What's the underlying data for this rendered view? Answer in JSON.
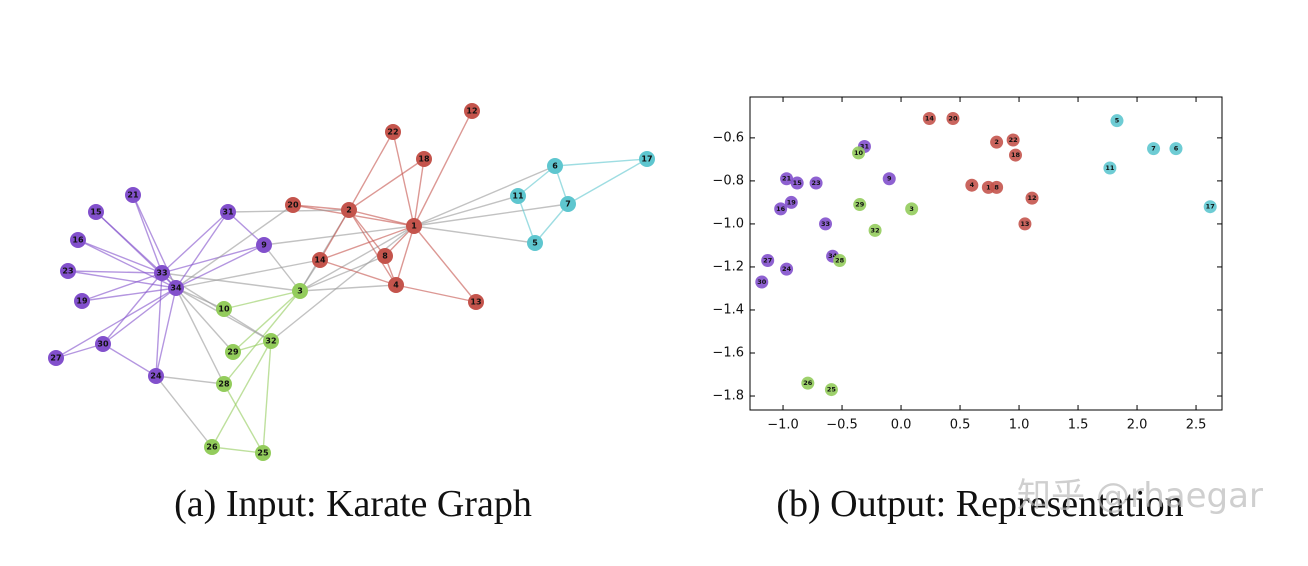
{
  "chart_data": [
    {
      "type": "network",
      "caption": "(a) Input: Karate Graph",
      "groups": [
        {
          "color": "#c4544c"
        },
        {
          "color": "#8250cc"
        },
        {
          "color": "#93cc5c"
        },
        {
          "color": "#5ec6cf"
        }
      ],
      "nodes": [
        {
          "label": "1",
          "group": 0
        },
        {
          "label": "2",
          "group": 0
        },
        {
          "label": "3",
          "group": 2
        },
        {
          "label": "4",
          "group": 0
        },
        {
          "label": "5",
          "group": 3
        },
        {
          "label": "6",
          "group": 3
        },
        {
          "label": "7",
          "group": 3
        },
        {
          "label": "8",
          "group": 0
        },
        {
          "label": "9",
          "group": 1
        },
        {
          "label": "10",
          "group": 2
        },
        {
          "label": "11",
          "group": 3
        },
        {
          "label": "12",
          "group": 0
        },
        {
          "label": "13",
          "group": 0
        },
        {
          "label": "14",
          "group": 0
        },
        {
          "label": "15",
          "group": 1
        },
        {
          "label": "16",
          "group": 1
        },
        {
          "label": "17",
          "group": 3
        },
        {
          "label": "18",
          "group": 0
        },
        {
          "label": "19",
          "group": 1
        },
        {
          "label": "20",
          "group": 0
        },
        {
          "label": "21",
          "group": 1
        },
        {
          "label": "22",
          "group": 0
        },
        {
          "label": "23",
          "group": 1
        },
        {
          "label": "24",
          "group": 1
        },
        {
          "label": "25",
          "group": 2
        },
        {
          "label": "26",
          "group": 2
        },
        {
          "label": "27",
          "group": 1
        },
        {
          "label": "28",
          "group": 2
        },
        {
          "label": "29",
          "group": 2
        },
        {
          "label": "30",
          "group": 1
        },
        {
          "label": "31",
          "group": 1
        },
        {
          "label": "32",
          "group": 2
        },
        {
          "label": "33",
          "group": 1
        },
        {
          "label": "34",
          "group": 1
        }
      ],
      "edges": [
        [
          1,
          2
        ],
        [
          1,
          3
        ],
        [
          1,
          4
        ],
        [
          1,
          5
        ],
        [
          1,
          6
        ],
        [
          1,
          7
        ],
        [
          1,
          8
        ],
        [
          1,
          9
        ],
        [
          1,
          11
        ],
        [
          1,
          12
        ],
        [
          1,
          13
        ],
        [
          1,
          14
        ],
        [
          1,
          18
        ],
        [
          1,
          20
        ],
        [
          1,
          22
        ],
        [
          1,
          32
        ],
        [
          2,
          3
        ],
        [
          2,
          4
        ],
        [
          2,
          8
        ],
        [
          2,
          14
        ],
        [
          2,
          18
        ],
        [
          2,
          20
        ],
        [
          2,
          22
        ],
        [
          2,
          31
        ],
        [
          3,
          4
        ],
        [
          3,
          8
        ],
        [
          3,
          9
        ],
        [
          3,
          10
        ],
        [
          3,
          14
        ],
        [
          3,
          28
        ],
        [
          3,
          29
        ],
        [
          3,
          33
        ],
        [
          4,
          8
        ],
        [
          4,
          13
        ],
        [
          4,
          14
        ],
        [
          5,
          7
        ],
        [
          5,
          11
        ],
        [
          6,
          7
        ],
        [
          6,
          11
        ],
        [
          6,
          17
        ],
        [
          7,
          17
        ],
        [
          9,
          31
        ],
        [
          9,
          33
        ],
        [
          9,
          34
        ],
        [
          10,
          34
        ],
        [
          14,
          34
        ],
        [
          15,
          33
        ],
        [
          15,
          34
        ],
        [
          16,
          33
        ],
        [
          16,
          34
        ],
        [
          19,
          33
        ],
        [
          19,
          34
        ],
        [
          20,
          34
        ],
        [
          21,
          33
        ],
        [
          21,
          34
        ],
        [
          23,
          33
        ],
        [
          23,
          34
        ],
        [
          24,
          26
        ],
        [
          24,
          28
        ],
        [
          24,
          30
        ],
        [
          24,
          33
        ],
        [
          24,
          34
        ],
        [
          25,
          26
        ],
        [
          25,
          28
        ],
        [
          25,
          32
        ],
        [
          26,
          32
        ],
        [
          27,
          30
        ],
        [
          27,
          34
        ],
        [
          28,
          34
        ],
        [
          29,
          32
        ],
        [
          29,
          34
        ],
        [
          30,
          33
        ],
        [
          30,
          34
        ],
        [
          31,
          33
        ],
        [
          31,
          34
        ],
        [
          32,
          33
        ],
        [
          32,
          34
        ],
        [
          33,
          34
        ]
      ]
    },
    {
      "type": "scatter",
      "caption": "(b) Output: Representation",
      "xlim": [
        -1.28,
        2.72
      ],
      "ylim": [
        -1.865,
        -0.41
      ],
      "xticks": [
        {
          "value": -1,
          "label": "−1.0"
        },
        {
          "value": -0.5,
          "label": "−0.5"
        },
        {
          "value": 0,
          "label": "0.0"
        },
        {
          "value": 0.5,
          "label": "0.5"
        },
        {
          "value": 1,
          "label": "1.0"
        },
        {
          "value": 1.5,
          "label": "1.5"
        },
        {
          "value": 2,
          "label": "2.0"
        },
        {
          "value": 2.5,
          "label": "2.5"
        }
      ],
      "yticks": [
        {
          "value": -0.6,
          "label": "−0.6"
        },
        {
          "value": -0.8,
          "label": "−0.8"
        },
        {
          "value": -1,
          "label": "−1.0"
        },
        {
          "value": -1.2,
          "label": "−1.2"
        },
        {
          "value": -1.4,
          "label": "−1.4"
        },
        {
          "value": -1.6,
          "label": "−1.6"
        },
        {
          "value": -1.8,
          "label": "−1.8"
        }
      ],
      "series": [
        {
          "color": "#c4544c",
          "labels": [
            "14",
            "20",
            "2",
            "22",
            "18",
            "4",
            "1",
            "8",
            "12",
            "13"
          ],
          "x": [
            0.24,
            0.44,
            0.81,
            0.95,
            0.97,
            0.6,
            0.74,
            0.81,
            1.11,
            1.05
          ],
          "values": [
            -0.51,
            -0.51,
            -0.62,
            -0.61,
            -0.68,
            -0.82,
            -0.83,
            -0.83,
            -0.88,
            -1.0
          ]
        },
        {
          "color": "#8250cc",
          "labels": [
            "31",
            "9",
            "21",
            "15",
            "23",
            "19",
            "16",
            "33",
            "34",
            "27",
            "24",
            "30"
          ],
          "x": [
            -0.31,
            -0.1,
            -0.97,
            -0.88,
            -0.72,
            -0.93,
            -1.02,
            -0.64,
            -0.58,
            -1.13,
            -0.97,
            -1.18
          ],
          "values": [
            -0.64,
            -0.79,
            -0.79,
            -0.81,
            -0.81,
            -0.9,
            -0.93,
            -1.0,
            -1.15,
            -1.17,
            -1.21,
            -1.27
          ]
        },
        {
          "color": "#93cc5c",
          "labels": [
            "10",
            "29",
            "3",
            "32",
            "28",
            "26",
            "25"
          ],
          "x": [
            -0.36,
            -0.35,
            0.09,
            -0.22,
            -0.52,
            -0.79,
            -0.59
          ],
          "values": [
            -0.67,
            -0.91,
            -0.93,
            -1.03,
            -1.17,
            -1.74,
            -1.77
          ]
        },
        {
          "color": "#5ec6cf",
          "labels": [
            "5",
            "7",
            "6",
            "11",
            "17"
          ],
          "x": [
            1.83,
            2.14,
            2.33,
            1.77,
            2.62
          ],
          "values": [
            -0.52,
            -0.65,
            -0.65,
            -0.74,
            -0.92
          ]
        }
      ]
    }
  ],
  "watermark": "知乎 @rhaegar"
}
